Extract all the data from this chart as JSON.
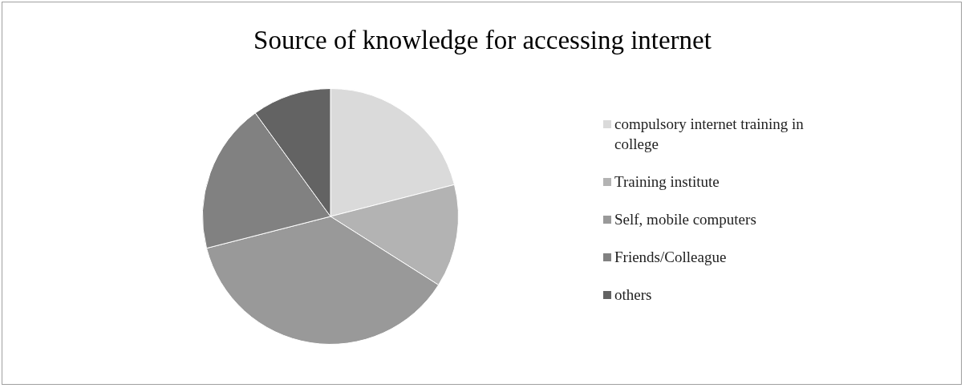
{
  "chart_data": {
    "type": "pie",
    "title": "Source of knowledge for accessing internet",
    "categories": [
      "compulsory internet training in college",
      "Training institute",
      "Self, mobile computers",
      "Friends/Colleague",
      "others"
    ],
    "values": [
      21,
      13,
      37,
      19,
      10
    ],
    "colors": [
      "#dadada",
      "#b3b3b3",
      "#999999",
      "#818181",
      "#636363"
    ],
    "legend": "right"
  }
}
